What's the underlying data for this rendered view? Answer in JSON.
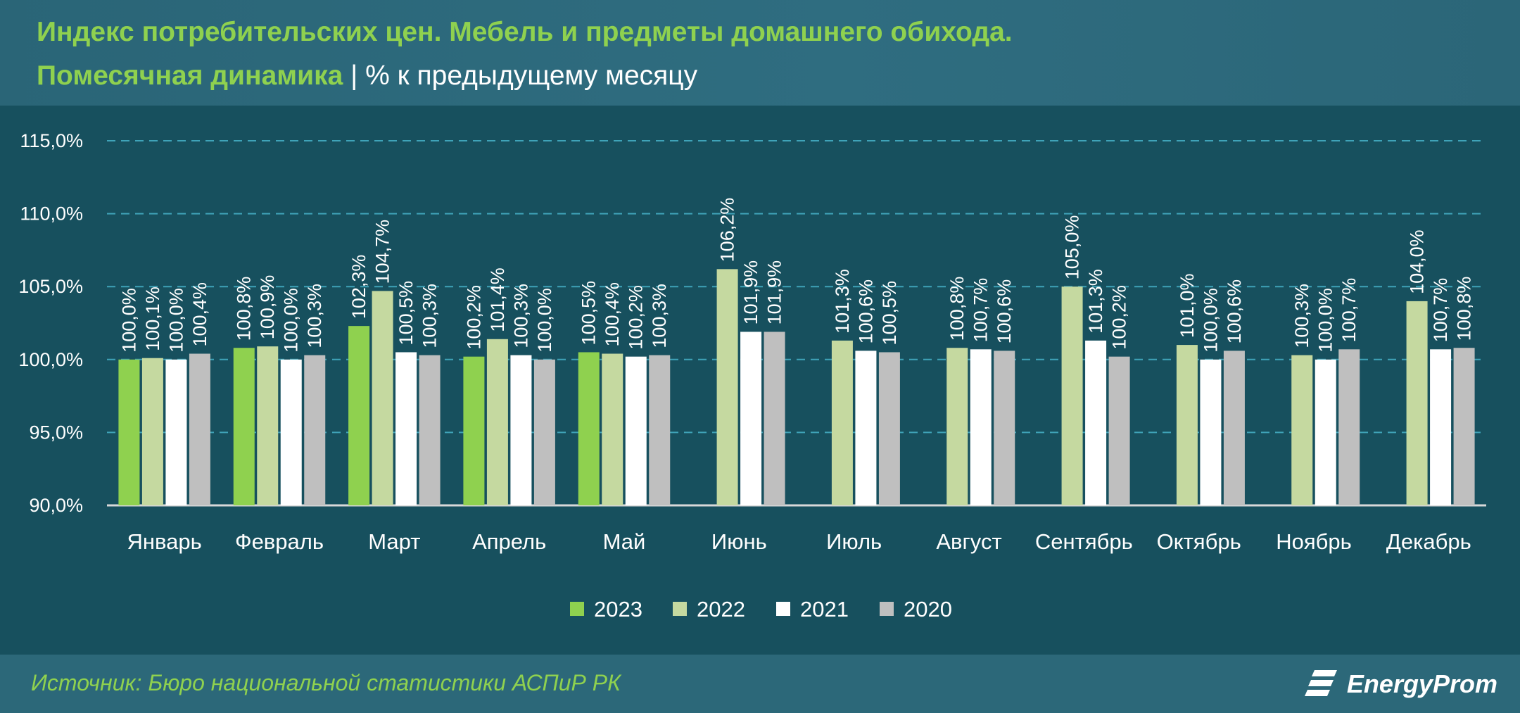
{
  "header": {
    "title": "Индекс потребительских цен. Мебель и предметы домашнего обихода.",
    "subtitle_strong": "Помесячная динамика",
    "subtitle_sep": " | ",
    "subtitle_unit": "% к предыдущему месяцу"
  },
  "footer": {
    "source": "Источник: Бюро национальной статистики АСПиР РК",
    "brand": "EnergyProm"
  },
  "colors": {
    "s2023": "#8fd14f",
    "s2022": "#c5d9a0",
    "s2021": "#ffffff",
    "s2020": "#bfbfbf",
    "grid": "#3fa3b8",
    "title": "#8fd14f"
  },
  "chart_data": {
    "type": "bar",
    "title": "Индекс потребительских цен. Мебель и предметы домашнего обихода.",
    "subtitle": "Помесячная динамика | % к предыдущему месяцу",
    "categories": [
      "Январь",
      "Февраль",
      "Март",
      "Апрель",
      "Май",
      "Июнь",
      "Июль",
      "Август",
      "Сентябрь",
      "Октябрь",
      "Ноябрь",
      "Декабрь"
    ],
    "series": [
      {
        "name": "2023",
        "values": [
          100.0,
          100.8,
          102.3,
          100.2,
          100.5,
          null,
          null,
          null,
          null,
          null,
          null,
          null
        ],
        "labels": [
          "100,0%",
          "100,8%",
          "102,3%",
          "100,2%",
          "100,5%",
          null,
          null,
          null,
          null,
          null,
          null,
          null
        ]
      },
      {
        "name": "2022",
        "values": [
          100.1,
          100.9,
          104.7,
          101.4,
          100.4,
          106.2,
          101.3,
          100.8,
          105.0,
          101.0,
          100.3,
          104.0
        ],
        "labels": [
          "100,1%",
          "100,9%",
          "104,7%",
          "101,4%",
          "100,4%",
          "106,2%",
          "101,3%",
          "100,8%",
          "105,0%",
          "101,0%",
          "100,3%",
          "104,0%"
        ]
      },
      {
        "name": "2021",
        "values": [
          100.0,
          100.0,
          100.5,
          100.3,
          100.2,
          101.9,
          100.6,
          100.7,
          101.3,
          100.0,
          100.0,
          100.7
        ],
        "labels": [
          "100,0%",
          "100,0%",
          "100,5%",
          "100,3%",
          "100,2%",
          "101,9%",
          "100,6%",
          "100,7%",
          "101,3%",
          "100,0%",
          "100,0%",
          "100,7%"
        ]
      },
      {
        "name": "2020",
        "values": [
          100.4,
          100.3,
          100.3,
          100.0,
          100.3,
          101.9,
          100.5,
          100.6,
          100.2,
          100.6,
          100.7,
          100.8
        ],
        "labels": [
          "100,4%",
          "100,3%",
          "100,3%",
          "100,0%",
          "100,3%",
          "101,9%",
          "100,5%",
          "100,6%",
          "100,2%",
          "100,6%",
          "100,7%",
          "100,8%"
        ]
      }
    ],
    "ylim": [
      90,
      115
    ],
    "yticks": [
      90,
      95,
      100,
      105,
      110,
      115
    ],
    "ytick_labels": [
      "90,0%",
      "95,0%",
      "100,0%",
      "105,0%",
      "110,0%",
      "115,0%"
    ],
    "grid": true,
    "legend": "bottom"
  }
}
